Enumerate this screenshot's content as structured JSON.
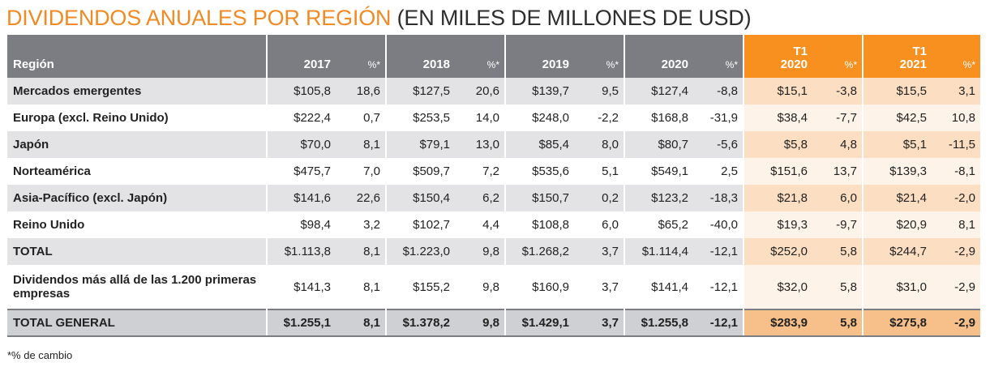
{
  "title": {
    "accent": "DIVIDENDOS ANUALES POR REGIÓN",
    "rest": " (EN MILES DE MILLONES DE USD)"
  },
  "colors": {
    "accent": "#f08a24",
    "header_gray": "#7b7d82",
    "header_orange": "#f7901e"
  },
  "table": {
    "headers": {
      "region": "Región",
      "y2017": "2017",
      "p1": "%*",
      "y2018": "2018",
      "p2": "%*",
      "y2019": "2019",
      "p3": "%*",
      "y2020": "2020",
      "p4": "%*",
      "q2020_a": "T1",
      "q2020_b": "2020",
      "p5": "%*",
      "q2021_a": "T1",
      "q2021_b": "2021",
      "p6": "%*"
    },
    "rows": [
      {
        "region": "Mercados emergentes",
        "v2017": "$105,8",
        "p2017": "18,6",
        "v2018": "$127,5",
        "p2018": "20,6",
        "v2019": "$139,7",
        "p2019": "9,5",
        "v2020": "$127,4",
        "p2020": "-8,8",
        "vq2020": "$15,1",
        "pq2020": "-3,8",
        "vq2021": "$15,5",
        "pq2021": "3,1"
      },
      {
        "region": "Europa (excl. Reino Unido)",
        "v2017": "$222,4",
        "p2017": "0,7",
        "v2018": "$253,5",
        "p2018": "14,0",
        "v2019": "$248,0",
        "p2019": "-2,2",
        "v2020": "$168,8",
        "p2020": "-31,9",
        "vq2020": "$38,4",
        "pq2020": "-7,7",
        "vq2021": "$42,5",
        "pq2021": "10,8"
      },
      {
        "region": "Japón",
        "v2017": "$70,0",
        "p2017": "8,1",
        "v2018": "$79,1",
        "p2018": "13,0",
        "v2019": "$85,4",
        "p2019": "8,0",
        "v2020": "$80,7",
        "p2020": "-5,6",
        "vq2020": "$5,8",
        "pq2020": "4,8",
        "vq2021": "$5,1",
        "pq2021": "-11,5"
      },
      {
        "region": "Norteamérica",
        "v2017": "$475,7",
        "p2017": "7,0",
        "v2018": "$509,7",
        "p2018": "7,2",
        "v2019": "$535,6",
        "p2019": "5,1",
        "v2020": "$549,1",
        "p2020": "2,5",
        "vq2020": "$151,6",
        "pq2020": "13,7",
        "vq2021": "$139,3",
        "pq2021": "-8,1"
      },
      {
        "region": "Asia-Pacífico (excl. Japón)",
        "v2017": "$141,6",
        "p2017": "22,6",
        "v2018": "$150,4",
        "p2018": "6,2",
        "v2019": "$150,7",
        "p2019": "0,2",
        "v2020": "$123,2",
        "p2020": "-18,3",
        "vq2020": "$21,8",
        "pq2020": "6,0",
        "vq2021": "$21,4",
        "pq2021": "-2,0"
      },
      {
        "region": "Reino Unido",
        "v2017": "$98,4",
        "p2017": "3,2",
        "v2018": "$102,7",
        "p2018": "4,4",
        "v2019": "$108,8",
        "p2019": "6,0",
        "v2020": "$65,2",
        "p2020": "-40,0",
        "vq2020": "$19,3",
        "pq2020": "-9,7",
        "vq2021": "$20,9",
        "pq2021": "8,1"
      },
      {
        "region": "TOTAL",
        "v2017": "$1.113,8",
        "p2017": "8,1",
        "v2018": "$1.223,0",
        "p2018": "9,8",
        "v2019": "$1.268,2",
        "p2019": "3,7",
        "v2020": "$1.114,4",
        "p2020": "-12,1",
        "vq2020": "$252,0",
        "pq2020": "5,8",
        "vq2021": "$244,7",
        "pq2021": "-2,9"
      },
      {
        "region": "Dividendos más allá de las 1.200 primeras empresas",
        "v2017": "$141,3",
        "p2017": "8,1",
        "v2018": "$155,2",
        "p2018": "9,8",
        "v2019": "$160,9",
        "p2019": "3,7",
        "v2020": "$141,4",
        "p2020": "-12,1",
        "vq2020": "$32,0",
        "pq2020": "5,8",
        "vq2021": "$31,0",
        "pq2021": "-2,9"
      },
      {
        "region": "TOTAL GENERAL",
        "v2017": "$1.255,1",
        "p2017": "8,1",
        "v2018": "$1.378,2",
        "p2018": "9,8",
        "v2019": "$1.429,1",
        "p2019": "3,7",
        "v2020": "$1.255,8",
        "p2020": "-12,1",
        "vq2020": "$283,9",
        "pq2020": "5,8",
        "vq2021": "$275,8",
        "pq2021": "-2,9"
      }
    ]
  },
  "footnote": "*% de cambio"
}
